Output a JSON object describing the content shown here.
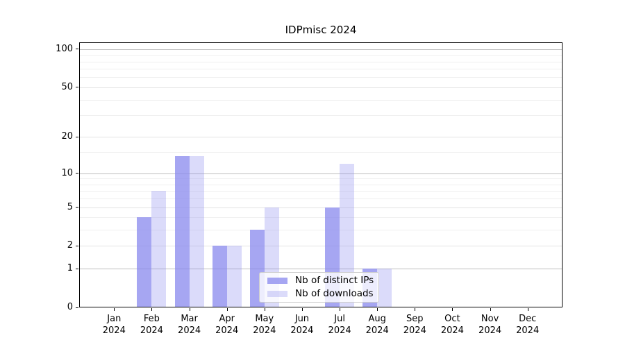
{
  "title": "IDPmisc 2024",
  "chart_data": {
    "type": "bar",
    "title": "IDPmisc 2024",
    "year": "2024",
    "categories": [
      "Jan",
      "Feb",
      "Mar",
      "Apr",
      "May",
      "Jun",
      "Jul",
      "Aug",
      "Sep",
      "Oct",
      "Nov",
      "Dec"
    ],
    "series": [
      {
        "name": "Nb of distinct IPs",
        "color": "#8888ee",
        "alpha": 0.75,
        "values": [
          0,
          4,
          14,
          2,
          3,
          0,
          5,
          1,
          0,
          0,
          0,
          0
        ]
      },
      {
        "name": "Nb of downloads",
        "color": "#8888ee",
        "alpha": 0.3,
        "values": [
          0,
          7,
          14,
          2,
          5,
          0,
          12,
          1,
          0,
          0,
          0,
          0
        ]
      }
    ],
    "y_axis": {
      "scale": "log1p",
      "ticks": [
        0,
        1,
        2,
        5,
        10,
        20,
        50,
        100
      ],
      "decade_gridlines": [
        1,
        10,
        100
      ],
      "mid_gridlines": [
        2,
        5,
        20,
        50
      ],
      "minor_gridlines": [
        3,
        4,
        6,
        7,
        8,
        9,
        15,
        30,
        40,
        60,
        70,
        80,
        90
      ],
      "min": 0,
      "max": 113
    },
    "x_axis": {
      "tick_label_format": "month over year"
    },
    "legend": {
      "position": "lower center",
      "entries": [
        "Nb of distinct IPs",
        "Nb of downloads"
      ]
    },
    "grid": true
  },
  "colors": {
    "background": "#ffffff",
    "bar_base": "#8888ee",
    "grid_decade": "#bdbdbd",
    "grid_mid": "#e2e2e2",
    "grid_minor": "#efefef",
    "axis_frame": "#000000",
    "legend_border": "#cccccc"
  }
}
